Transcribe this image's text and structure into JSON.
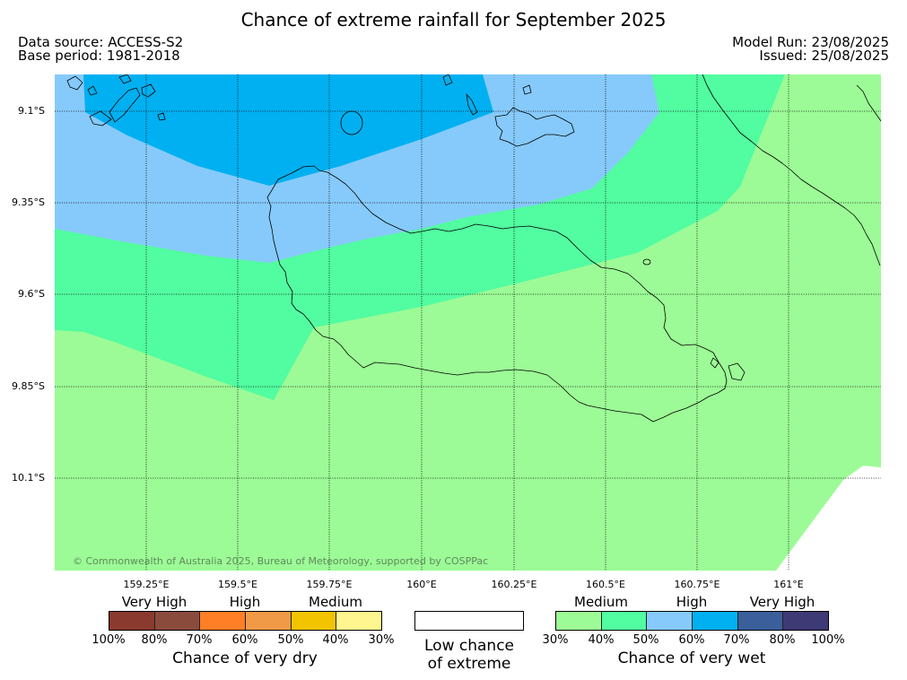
{
  "title": "Chance of extreme rainfall for September 2025",
  "header": {
    "data_source": "Data source: ACCESS-S2",
    "base_period": "Base period: 1981-2018",
    "model_run": "Model Run: 23/08/2025",
    "issued": "Issued: 25/08/2025"
  },
  "map": {
    "lat_labels": [
      "9.1°S",
      "9.35°S",
      "9.6°S",
      "9.85°S",
      "10.1°S"
    ],
    "lon_labels": [
      "159.25°E",
      "159.5°E",
      "159.75°E",
      "160°E",
      "160.25°E",
      "160.5°E",
      "160.75°E",
      "161°E"
    ],
    "copyright": "© Commonwealth of Australia 2025, Bureau of Meteorology, supported by COSPPac",
    "coastline_color": "#000000"
  },
  "legend": {
    "dry": {
      "levels": [
        "Very High",
        "High",
        "Medium"
      ],
      "colors": [
        "#8b3a30",
        "#8b4b3c",
        "#ff7f27",
        "#f09a48",
        "#f2c400",
        "#fff68f"
      ],
      "ticks": [
        "100%",
        "80%",
        "70%",
        "60%",
        "50%",
        "40%",
        "30%"
      ],
      "title": "Chance of very dry"
    },
    "neutral": {
      "color": "#ffffff",
      "line1": "Low chance",
      "line2": "of extreme"
    },
    "wet": {
      "levels": [
        "Medium",
        "High",
        "Very High"
      ],
      "colors": [
        "#9cfb96",
        "#52fca0",
        "#86cafb",
        "#00b0f0",
        "#3a5f9a",
        "#3e3a75"
      ],
      "ticks": [
        "30%",
        "40%",
        "50%",
        "60%",
        "70%",
        "80%",
        "100%"
      ],
      "title": "Chance of very wet"
    }
  }
}
